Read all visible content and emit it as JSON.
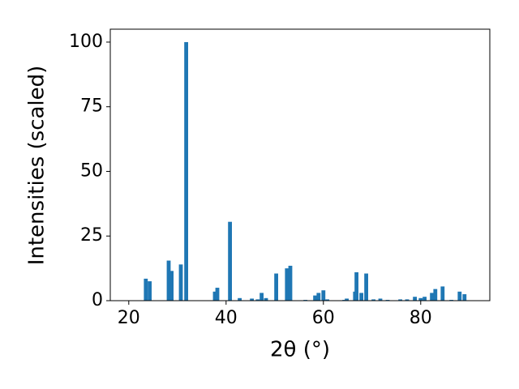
{
  "chart_data": {
    "type": "bar",
    "xlabel": "2θ (°)",
    "ylabel": "Intensities (scaled)",
    "x": [
      23.5,
      24.3,
      28.2,
      28.8,
      30.7,
      31.8,
      37.7,
      38.2,
      40.8,
      42.8,
      45.3,
      46.5,
      47.3,
      48.2,
      50.3,
      52.5,
      53.2,
      56.3,
      58.3,
      59.0,
      60.0,
      60.8,
      64.3,
      64.8,
      66.5,
      66.8,
      67.8,
      68.8,
      70.3,
      71.7,
      73.2,
      75.8,
      77.2,
      78.8,
      80.0,
      80.8,
      82.3,
      83.0,
      84.5,
      86.3,
      88.0,
      89.0
    ],
    "values": [
      8.5,
      7.5,
      15.5,
      11.5,
      14,
      100,
      3.5,
      5,
      30.5,
      1,
      0.8,
      0.5,
      3,
      1,
      10.5,
      12.5,
      13.5,
      0.3,
      2,
      3,
      4,
      0.5,
      0.3,
      0.8,
      3.5,
      11,
      3,
      10.5,
      0.5,
      0.8,
      0.3,
      0.5,
      0.5,
      1.5,
      1,
      1.5,
      3,
      4.5,
      5.5,
      0.3,
      3.5,
      2.5
    ],
    "color": "#1f77b4",
    "xlim": [
      16.2,
      94.2
    ],
    "ylim": [
      0,
      105
    ],
    "xticks": [
      20,
      40,
      60,
      80
    ],
    "yticks": [
      0,
      25,
      50,
      75,
      100
    ]
  }
}
